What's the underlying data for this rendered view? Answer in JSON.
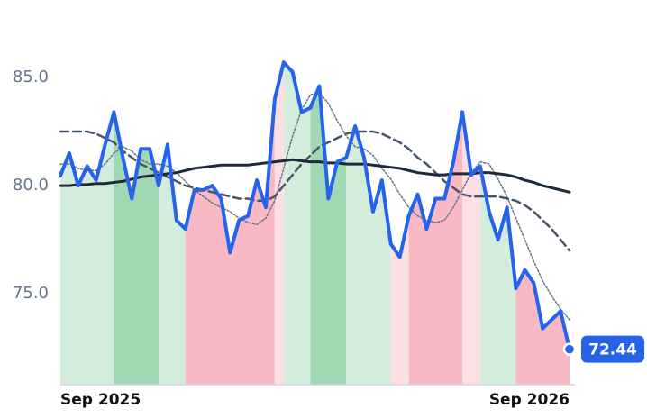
{
  "chart_data": {
    "type": "line",
    "categories": [
      "Sep 2025",
      null,
      null,
      null,
      null,
      null,
      null,
      null,
      null,
      null,
      null,
      null,
      null,
      null,
      null,
      null,
      null,
      null,
      null,
      null,
      null,
      null,
      null,
      null,
      null,
      null,
      null,
      null,
      null,
      null,
      null,
      null,
      null,
      null,
      null,
      null,
      null,
      null,
      null,
      null,
      null,
      null,
      null,
      null,
      null,
      null,
      null,
      null,
      null,
      null,
      null,
      null,
      null,
      null,
      null,
      null,
      null,
      "Sep 2026"
    ],
    "series": [
      {
        "color": "#2563eb",
        "dash": "solid",
        "width": 4,
        "values": [
          80.46,
          81.5,
          80.0,
          80.9,
          80.25,
          81.9,
          83.4,
          81.3,
          79.4,
          81.7,
          81.7,
          80.0,
          81.9,
          78.4,
          78.0,
          79.8,
          79.8,
          80.0,
          79.4,
          76.9,
          78.4,
          78.6,
          80.25,
          79.0,
          84.0,
          85.7,
          85.25,
          83.4,
          83.6,
          84.6,
          79.4,
          81.1,
          81.3,
          82.75,
          81.3,
          78.8,
          80.25,
          77.3,
          76.7,
          78.6,
          79.6,
          78.0,
          79.4,
          79.4,
          81.1,
          83.4,
          80.5,
          80.9,
          78.8,
          77.5,
          79.0,
          75.25,
          76.1,
          75.5,
          73.4,
          73.8,
          74.2,
          72.44
        ]
      },
      {
        "color": "#1e293b",
        "dash": "solid",
        "width": 3,
        "values": [
          80.0,
          80.0,
          80.05,
          80.05,
          80.1,
          80.1,
          80.15,
          80.2,
          80.3,
          80.4,
          80.45,
          80.5,
          80.55,
          80.6,
          80.7,
          80.8,
          80.85,
          80.9,
          80.95,
          80.95,
          80.95,
          80.95,
          81.0,
          81.05,
          81.1,
          81.15,
          81.2,
          81.15,
          81.1,
          81.1,
          81.05,
          81.05,
          81.0,
          81.0,
          81.0,
          80.95,
          80.9,
          80.85,
          80.8,
          80.7,
          80.6,
          80.55,
          80.5,
          80.5,
          80.55,
          80.55,
          80.55,
          80.6,
          80.6,
          80.55,
          80.5,
          80.4,
          80.25,
          80.15,
          80.0,
          79.9,
          79.8,
          79.7
        ]
      },
      {
        "color": "#475569",
        "dash": "dashed",
        "width": 2.5,
        "values": [
          82.5,
          82.5,
          82.5,
          82.5,
          82.4,
          82.2,
          82.0,
          81.6,
          81.3,
          81.0,
          80.8,
          80.6,
          80.4,
          80.2,
          80.0,
          79.9,
          79.8,
          79.7,
          79.6,
          79.5,
          79.4,
          79.4,
          79.3,
          79.3,
          79.5,
          80.0,
          80.5,
          81.0,
          81.4,
          81.8,
          82.0,
          82.2,
          82.4,
          82.5,
          82.5,
          82.5,
          82.4,
          82.2,
          82.0,
          81.7,
          81.3,
          81.0,
          80.6,
          80.2,
          79.9,
          79.6,
          79.5,
          79.5,
          79.5,
          79.5,
          79.4,
          79.3,
          79.1,
          78.8,
          78.4,
          78.0,
          77.5,
          77.0
        ]
      },
      {
        "color": "#64748b",
        "dash": "dotted",
        "width": 1.5,
        "values": [
          81,
          81,
          80.8,
          80.7,
          80.7,
          81,
          81.5,
          81.8,
          81.6,
          81.2,
          81,
          81,
          80.9,
          80.6,
          80.2,
          79.8,
          79.5,
          79.2,
          79.0,
          78.8,
          78.5,
          78.3,
          78.2,
          78.5,
          79.3,
          80.8,
          82.3,
          83.5,
          84.2,
          84.3,
          83.8,
          83.0,
          82.3,
          81.8,
          81.7,
          81.4,
          80.8,
          80.3,
          79.6,
          79.0,
          78.6,
          78.4,
          78.3,
          78.4,
          79.0,
          79.8,
          80.6,
          81.1,
          81.0,
          80.3,
          79.5,
          78.5,
          77.5,
          76.5,
          75.6,
          74.9,
          74.3,
          73.8
        ]
      }
    ],
    "bands": [
      {
        "from": 0,
        "to": 6,
        "color": "#d3ecdc"
      },
      {
        "from": 6,
        "to": 11,
        "color": "#a0d8b3"
      },
      {
        "from": 11,
        "to": 14,
        "color": "#d3ecdc"
      },
      {
        "from": 14,
        "to": 24,
        "color": "#f8b9c4"
      },
      {
        "from": 24,
        "to": 25,
        "color": "#fcdfe3"
      },
      {
        "from": 25,
        "to": 28,
        "color": "#d3ecdc"
      },
      {
        "from": 28,
        "to": 32,
        "color": "#a0d8b3"
      },
      {
        "from": 32,
        "to": 37,
        "color": "#d3ecdc"
      },
      {
        "from": 37,
        "to": 39,
        "color": "#fcdfe3"
      },
      {
        "from": 39,
        "to": 45,
        "color": "#f8b9c4"
      },
      {
        "from": 45,
        "to": 47,
        "color": "#fcdfe3"
      },
      {
        "from": 47,
        "to": 51,
        "color": "#d3ecdc"
      },
      {
        "from": 51,
        "to": 57,
        "color": "#f8b9c4"
      }
    ],
    "ylim": [
      70.8,
      87
    ],
    "yticks": [
      {
        "value": 75,
        "label": "75.0"
      },
      {
        "value": 80,
        "label": "80.0"
      },
      {
        "value": 85,
        "label": "85.0"
      }
    ],
    "grid": false
  }
}
